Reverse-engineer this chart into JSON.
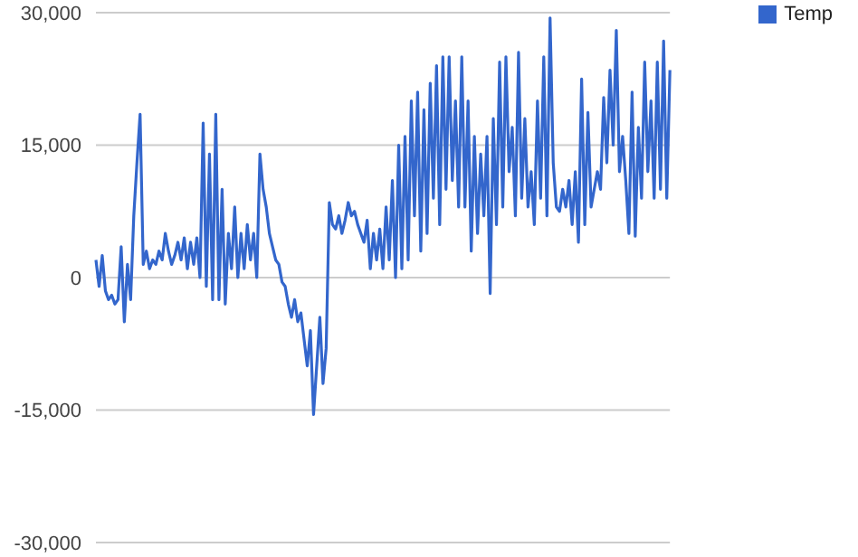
{
  "chart_data": {
    "type": "line",
    "categories": [
      null,
      null,
      null,
      null,
      null,
      null,
      null,
      null,
      null,
      null,
      null,
      null,
      null,
      null,
      null,
      null,
      null,
      null,
      null,
      null,
      null,
      null,
      null,
      null,
      null,
      null,
      null,
      null,
      null,
      null,
      null,
      null,
      null,
      null,
      null,
      null,
      null,
      null,
      null,
      null,
      null,
      null,
      null,
      null,
      null,
      null,
      null,
      null,
      null,
      null,
      null,
      null,
      null,
      null,
      null,
      null,
      null,
      null,
      null,
      null,
      null,
      null,
      null,
      null,
      null,
      null,
      null,
      null,
      null,
      null,
      null,
      null,
      null,
      null,
      null,
      null,
      null,
      null,
      null,
      null,
      null,
      null,
      null,
      null,
      null,
      null,
      null,
      null,
      null,
      null,
      null,
      null,
      null,
      null,
      null,
      null,
      null,
      null,
      null,
      null,
      null,
      null,
      null,
      null,
      null,
      null,
      null,
      null,
      null,
      null,
      null,
      null,
      null,
      null,
      null,
      null,
      null,
      null,
      null,
      null,
      null,
      null,
      null,
      null,
      null,
      null,
      null,
      null,
      null,
      null,
      null,
      null,
      null,
      null,
      null,
      null,
      null,
      null,
      null,
      null,
      null,
      null,
      null,
      null,
      null,
      null,
      null,
      null,
      null,
      null,
      null,
      null,
      null,
      null,
      null,
      null,
      null,
      null,
      null,
      null,
      null,
      null,
      null,
      null,
      null,
      null,
      null,
      null,
      null,
      null,
      null,
      null,
      null,
      null,
      null,
      null,
      null,
      null,
      null,
      null,
      null,
      null,
      null
    ],
    "series": [
      {
        "name": "Temp",
        "color": "#3366cc",
        "values": [
          2000,
          -1000,
          2500,
          -1500,
          -2500,
          -2000,
          -3000,
          -2500,
          3500,
          -5000,
          1500,
          -2500,
          7000,
          13000,
          18500,
          1500,
          3000,
          1000,
          2000,
          1500,
          3000,
          2000,
          5000,
          3000,
          1500,
          2500,
          4000,
          2000,
          4500,
          1000,
          4000,
          1500,
          4500,
          0,
          17500,
          -1000,
          14000,
          -2500,
          18500,
          -2500,
          10000,
          -3000,
          5000,
          1000,
          8000,
          0,
          5000,
          1000,
          6000,
          2000,
          5000,
          0,
          14000,
          10000,
          8000,
          5000,
          3500,
          2000,
          1500,
          -500,
          -1000,
          -3000,
          -4500,
          -2500,
          -5000,
          -4000,
          -7000,
          -10000,
          -6000,
          -15500,
          -10000,
          -4500,
          -12000,
          -8000,
          8500,
          6000,
          5500,
          7000,
          5000,
          6500,
          8500,
          7000,
          7500,
          6000,
          5000,
          4000,
          6500,
          1000,
          5000,
          2000,
          5500,
          1000,
          8000,
          2000,
          11000,
          0,
          15000,
          1000,
          16000,
          2000,
          20000,
          7000,
          21000,
          3000,
          19000,
          5000,
          22000,
          9000,
          24000,
          6000,
          25000,
          10000,
          25000,
          11000,
          20000,
          8000,
          25000,
          8000,
          20000,
          3000,
          16000,
          5000,
          14000,
          7000,
          16000,
          -1800,
          18000,
          6000,
          24400,
          8000,
          25000,
          12000,
          17000,
          7000,
          25500,
          9000,
          18000,
          8000,
          12000,
          6000,
          20000,
          9000,
          25000,
          7000,
          29400,
          13000,
          8000,
          7500,
          10000,
          8000,
          11000,
          6000,
          12000,
          4000,
          22500,
          6000,
          18700,
          8000,
          10000,
          12000,
          10000,
          20400,
          13000,
          23500,
          15000,
          28000,
          12000,
          16000,
          11000,
          5000,
          21000,
          4700,
          17000,
          9000,
          24400,
          12000,
          20000,
          9000,
          24400,
          10000,
          26800,
          9000,
          23500
        ]
      }
    ],
    "ylim": [
      -30000,
      30000
    ],
    "yticks": [
      {
        "value": -30000,
        "label": "-30,000"
      },
      {
        "value": -15000,
        "label": "-15,000"
      },
      {
        "value": 0,
        "label": "0"
      },
      {
        "value": 15000,
        "label": "15,000"
      },
      {
        "value": 30000,
        "label": "30,000"
      }
    ],
    "grid": "y",
    "legend": "top right",
    "marker": "none",
    "line_style": "solid"
  }
}
